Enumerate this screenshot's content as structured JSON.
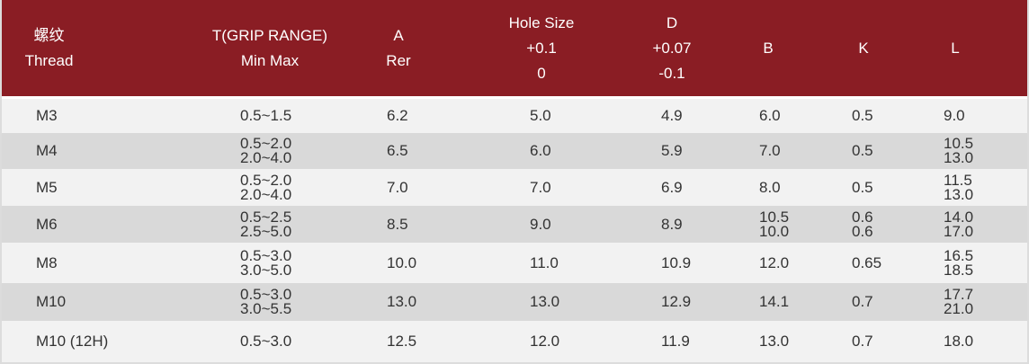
{
  "header": {
    "thread": [
      "螺纹",
      "Thread"
    ],
    "grip": [
      "T(GRIP RANGE)",
      "Min Max"
    ],
    "a": [
      "A",
      "Rer"
    ],
    "hole": [
      "Hole Size",
      "+0.1",
      "0"
    ],
    "d": [
      "D",
      "+0.07",
      "-0.1"
    ],
    "b": [
      "B"
    ],
    "k": [
      "K"
    ],
    "l": [
      "L"
    ]
  },
  "rows": [
    {
      "thread": "M3",
      "t": [
        "0.5~1.5"
      ],
      "a": "6.2",
      "hole": "5.0",
      "d": "4.9",
      "b": [
        "6.0"
      ],
      "k": [
        "0.5"
      ],
      "l": [
        "9.0"
      ]
    },
    {
      "thread": "M4",
      "t": [
        "0.5~2.0",
        "2.0~4.0"
      ],
      "a": "6.5",
      "hole": "6.0",
      "d": "5.9",
      "b": [
        "7.0"
      ],
      "k": [
        "0.5"
      ],
      "l": [
        "10.5",
        "13.0"
      ]
    },
    {
      "thread": "M5",
      "t": [
        "0.5~2.0",
        "2.0~4.0"
      ],
      "a": "7.0",
      "hole": "7.0",
      "d": "6.9",
      "b": [
        "8.0"
      ],
      "k": [
        "0.5"
      ],
      "l": [
        "11.5",
        "13.0"
      ]
    },
    {
      "thread": "M6",
      "t": [
        "0.5~2.5",
        "2.5~5.0"
      ],
      "a": "8.5",
      "hole": "9.0",
      "d": "8.9",
      "b": [
        "10.5",
        "10.0"
      ],
      "k": [
        "0.6",
        "0.6"
      ],
      "l": [
        "14.0",
        "17.0"
      ]
    },
    {
      "thread": "M8",
      "t": [
        "0.5~3.0",
        "3.0~5.0"
      ],
      "a": "10.0",
      "hole": "11.0",
      "d": "10.9",
      "b": [
        "12.0"
      ],
      "k": [
        "0.65"
      ],
      "l": [
        "16.5",
        "18.5"
      ]
    },
    {
      "thread": "M10",
      "t": [
        "0.5~3.0",
        "3.0~5.5"
      ],
      "a": "13.0",
      "hole": "13.0",
      "d": "12.9",
      "b": [
        "14.1"
      ],
      "k": [
        "0.7"
      ],
      "l": [
        "17.7",
        "21.0"
      ]
    },
    {
      "thread": "M10 (12H)",
      "t": [
        "0.5~3.0"
      ],
      "a": "12.5",
      "hole": "12.0",
      "d": "11.9",
      "b": [
        "13.0"
      ],
      "k": [
        "0.7"
      ],
      "l": [
        "18.0"
      ]
    }
  ]
}
